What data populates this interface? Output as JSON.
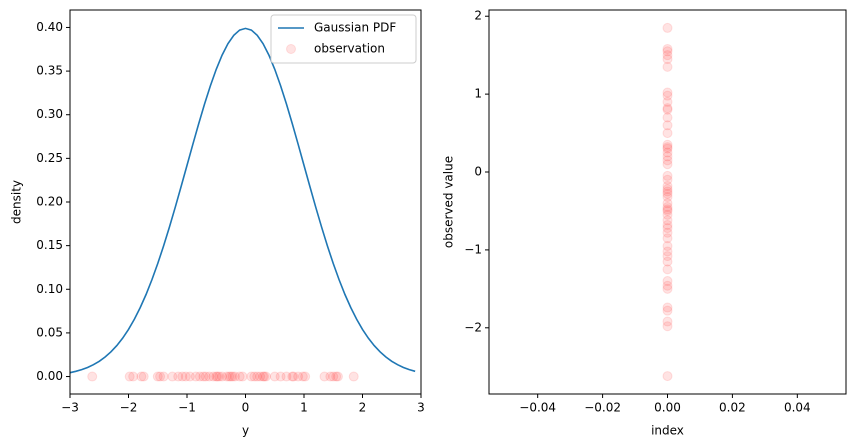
{
  "chart_data": [
    {
      "type": "line",
      "xlabel": "y",
      "ylabel": "density",
      "xlim": [
        -3,
        3
      ],
      "ylim": [
        -0.02,
        0.42
      ],
      "xticks": [
        "−3",
        "−2",
        "−1",
        "0",
        "1",
        "2",
        "3"
      ],
      "yticks": [
        "0.00",
        "0.05",
        "0.10",
        "0.15",
        "0.20",
        "0.25",
        "0.30",
        "0.35",
        "0.40"
      ],
      "grid": false,
      "legend": {
        "placement": "top-right",
        "entries": [
          {
            "label": "Gaussian PDF",
            "kind": "line",
            "color": "#1f77b4"
          },
          {
            "label": "observation",
            "kind": "marker",
            "color": "#ff4444",
            "alpha": 0.15
          }
        ]
      },
      "series": [
        {
          "name": "Gaussian PDF",
          "type": "line",
          "color": "#1f77b4",
          "x": [
            -3.0,
            -2.9,
            -2.8,
            -2.7,
            -2.6,
            -2.5,
            -2.4,
            -2.3,
            -2.2,
            -2.1,
            -2.0,
            -1.9,
            -1.8,
            -1.7,
            -1.6,
            -1.5,
            -1.4,
            -1.3,
            -1.2,
            -1.1,
            -1.0,
            -0.9,
            -0.8,
            -0.7,
            -0.6,
            -0.5,
            -0.4,
            -0.3,
            -0.2,
            -0.1,
            0.0,
            0.1,
            0.2,
            0.3,
            0.4,
            0.5,
            0.6,
            0.7,
            0.8,
            0.9,
            1.0,
            1.1,
            1.2,
            1.3,
            1.4,
            1.5,
            1.6,
            1.7,
            1.8,
            1.9,
            2.0,
            2.1,
            2.2,
            2.3,
            2.4,
            2.5,
            2.6,
            2.7,
            2.8,
            2.9
          ],
          "y": [
            0.0044,
            0.006,
            0.0079,
            0.0104,
            0.0136,
            0.0175,
            0.0224,
            0.0283,
            0.0355,
            0.044,
            0.054,
            0.0656,
            0.079,
            0.094,
            0.1109,
            0.1295,
            0.1497,
            0.1714,
            0.1942,
            0.2179,
            0.242,
            0.2661,
            0.2897,
            0.3123,
            0.3332,
            0.3521,
            0.3683,
            0.3814,
            0.391,
            0.397,
            0.3989,
            0.397,
            0.391,
            0.3814,
            0.3683,
            0.3521,
            0.3332,
            0.3123,
            0.2897,
            0.2661,
            0.242,
            0.2179,
            0.1942,
            0.1714,
            0.1497,
            0.1295,
            0.1109,
            0.094,
            0.079,
            0.0656,
            0.054,
            0.044,
            0.0355,
            0.0283,
            0.0224,
            0.0175,
            0.0136,
            0.0104,
            0.0079,
            0.006
          ]
        },
        {
          "name": "observation",
          "type": "scatter",
          "color": "#ff4444",
          "alpha": 0.15,
          "x": [
            -2.62,
            -1.98,
            -1.92,
            -1.78,
            -1.74,
            -1.5,
            -1.46,
            -1.4,
            -1.25,
            -1.15,
            -1.08,
            -1.02,
            -0.95,
            -0.85,
            -0.78,
            -0.72,
            -0.68,
            -0.62,
            -0.55,
            -0.5,
            -0.48,
            -0.45,
            -0.4,
            -0.32,
            -0.28,
            -0.25,
            -0.22,
            -0.18,
            -0.1,
            -0.05,
            0.1,
            0.15,
            0.2,
            0.25,
            0.3,
            0.32,
            0.35,
            0.5,
            0.6,
            0.7,
            0.8,
            0.82,
            0.9,
            0.98,
            1.02,
            1.35,
            1.45,
            1.5,
            1.55,
            1.58,
            1.85
          ],
          "y": [
            0,
            0,
            0,
            0,
            0,
            0,
            0,
            0,
            0,
            0,
            0,
            0,
            0,
            0,
            0,
            0,
            0,
            0,
            0,
            0,
            0,
            0,
            0,
            0,
            0,
            0,
            0,
            0,
            0,
            0,
            0,
            0,
            0,
            0,
            0,
            0,
            0,
            0,
            0,
            0,
            0,
            0,
            0,
            0,
            0,
            0,
            0,
            0,
            0,
            0,
            0
          ]
        }
      ]
    },
    {
      "type": "scatter",
      "xlabel": "index",
      "ylabel": "observed value",
      "xlim": [
        -0.055,
        0.055
      ],
      "ylim": [
        -2.85,
        2.08
      ],
      "xticks": [
        "−0.04",
        "−0.02",
        "0.00",
        "0.02",
        "0.04"
      ],
      "xtick_values": [
        -0.04,
        -0.02,
        0.0,
        0.02,
        0.04
      ],
      "yticks": [
        "−2",
        "−1",
        "0",
        "1",
        "2"
      ],
      "ytick_values": [
        -2,
        -1,
        0,
        1,
        2
      ],
      "grid": false,
      "series": [
        {
          "type": "scatter",
          "color": "#ff4444",
          "alpha": 0.15,
          "x": [
            0,
            0,
            0,
            0,
            0,
            0,
            0,
            0,
            0,
            0,
            0,
            0,
            0,
            0,
            0,
            0,
            0,
            0,
            0,
            0,
            0,
            0,
            0,
            0,
            0,
            0,
            0,
            0,
            0,
            0,
            0,
            0,
            0,
            0,
            0,
            0,
            0,
            0,
            0,
            0,
            0,
            0,
            0,
            0,
            0,
            0,
            0,
            0,
            0,
            0,
            0
          ],
          "y": [
            -2.62,
            -1.98,
            -1.92,
            -1.78,
            -1.74,
            -1.5,
            -1.46,
            -1.4,
            -1.25,
            -1.15,
            -1.08,
            -1.02,
            -0.95,
            -0.85,
            -0.78,
            -0.72,
            -0.68,
            -0.62,
            -0.55,
            -0.5,
            -0.48,
            -0.45,
            -0.4,
            -0.32,
            -0.28,
            -0.25,
            -0.22,
            -0.18,
            -0.1,
            -0.05,
            0.1,
            0.15,
            0.2,
            0.25,
            0.3,
            0.32,
            0.35,
            0.5,
            0.6,
            0.7,
            0.8,
            0.82,
            0.9,
            0.98,
            1.02,
            1.35,
            1.45,
            1.5,
            1.55,
            1.58,
            1.85
          ]
        }
      ]
    }
  ]
}
